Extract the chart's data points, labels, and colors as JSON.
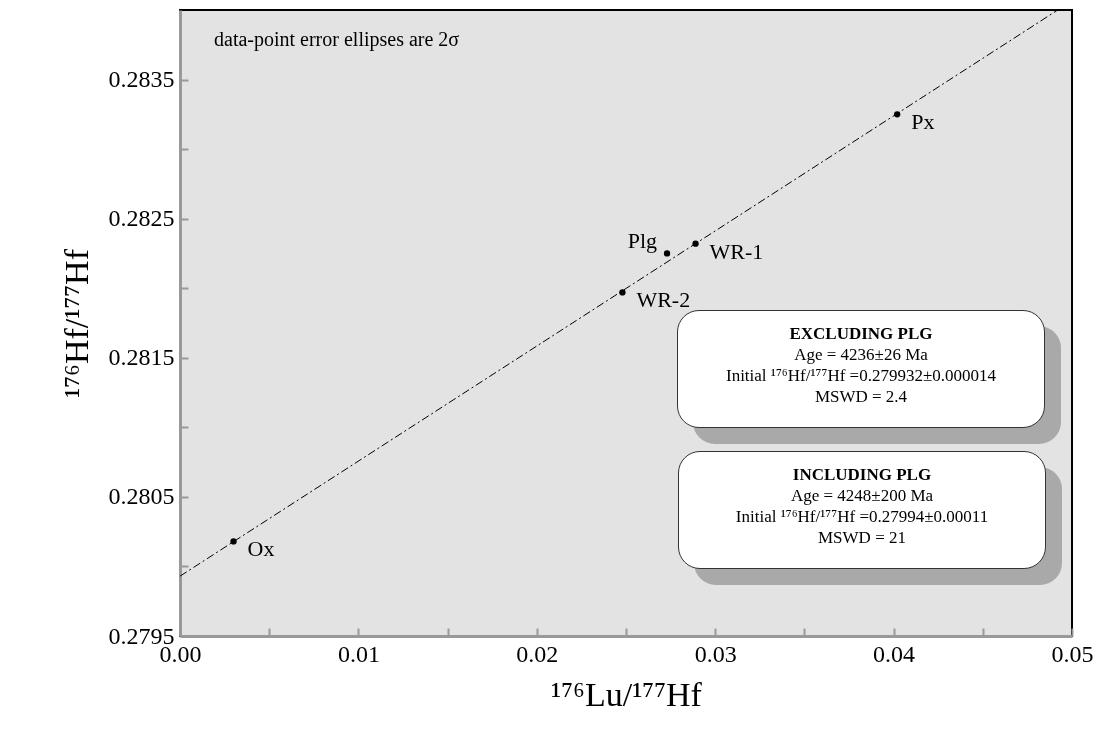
{
  "chart_data": {
    "type": "scatter",
    "xlabel": "¹⁷⁶Lu/¹⁷⁷Hf",
    "ylabel": "¹⁷⁶Hf/¹⁷⁷Hf",
    "xlim": [
      0,
      0.05
    ],
    "ylim": [
      0.2795,
      0.284
    ],
    "xticks": [
      {
        "value": 0,
        "label": "0.00"
      },
      {
        "value": 0.005,
        "label": null
      },
      {
        "value": 0.01,
        "label": "0.01"
      },
      {
        "value": 0.015,
        "label": null
      },
      {
        "value": 0.02,
        "label": "0.02"
      },
      {
        "value": 0.025,
        "label": null
      },
      {
        "value": 0.03,
        "label": "0.03"
      },
      {
        "value": 0.035,
        "label": null
      },
      {
        "value": 0.04,
        "label": "0.04"
      },
      {
        "value": 0.045,
        "label": null
      },
      {
        "value": 0.05,
        "label": "0.05"
      }
    ],
    "yticks": [
      0.2795,
      {
        "value": 0.28,
        "label": null
      },
      0.2805,
      {
        "value": 0.281,
        "label": null
      },
      0.2815,
      {
        "value": 0.282,
        "label": null
      },
      0.2825,
      {
        "value": 0.283,
        "label": null
      },
      0.2835
    ],
    "grid": false,
    "series": [
      {
        "type": "line",
        "color": "#000000",
        "line_style": "dashed",
        "x": [
          0,
          0.0492
        ],
        "values": [
          0.27993,
          0.284
        ]
      },
      {
        "color": "#000000",
        "marker": "circle",
        "x": [
          0.003,
          0.0248,
          0.0273,
          0.0289,
          0.0402
        ],
        "values": [
          0.28018,
          0.28197,
          0.28225,
          0.28232,
          0.28325
        ]
      }
    ],
    "annotations": [
      "data-point error ellipses are 2σ",
      {
        "text": "Ox",
        "x": 0.003,
        "y": 0.28018
      },
      {
        "text": "WR-2",
        "x": 0.0248,
        "y": 0.28197
      },
      {
        "text": "Plg",
        "x": 0.0273,
        "y": 0.28225
      },
      {
        "text": "WR-1",
        "x": 0.0289,
        "y": 0.28232
      },
      {
        "text": "Px",
        "x": 0.0402,
        "y": 0.28325
      },
      "EXCLUDING PLG\nAge = 4236±26 Ma\nInitial ¹⁷⁶Hf/¹⁷⁷Hf =0.279932±0.000014\nMSWD = 2.4",
      "INCLUDING PLG\nAge = 4248±200 Ma\nInitial ¹⁷⁶Hf/¹⁷⁷Hf =0.27994±0.00011\nMSWD = 21"
    ]
  }
}
